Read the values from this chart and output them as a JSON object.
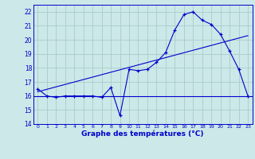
{
  "hours": [
    0,
    1,
    2,
    3,
    4,
    5,
    6,
    7,
    8,
    9,
    10,
    11,
    12,
    13,
    14,
    15,
    16,
    17,
    18,
    19,
    20,
    21,
    22,
    23
  ],
  "temps": [
    16.5,
    16.0,
    15.9,
    16.0,
    16.0,
    16.0,
    16.0,
    15.9,
    16.6,
    14.6,
    17.9,
    17.8,
    17.9,
    18.4,
    19.1,
    20.7,
    21.8,
    22.0,
    21.4,
    21.1,
    20.4,
    19.2,
    17.9,
    16.0
  ],
  "min_line_y": 16.0,
  "trend_x": [
    0,
    23
  ],
  "trend_y": [
    16.3,
    20.3
  ],
  "bg_color": "#cce8e8",
  "grid_color": "#aacccc",
  "line_color": "#0000cc",
  "xlabel": "Graphe des températures (°C)",
  "xlim": [
    -0.5,
    23.5
  ],
  "ylim": [
    14,
    22.5
  ],
  "yticks": [
    14,
    15,
    16,
    17,
    18,
    19,
    20,
    21,
    22
  ],
  "xticks": [
    0,
    1,
    2,
    3,
    4,
    5,
    6,
    7,
    8,
    9,
    10,
    11,
    12,
    13,
    14,
    15,
    16,
    17,
    18,
    19,
    20,
    21,
    22,
    23
  ]
}
